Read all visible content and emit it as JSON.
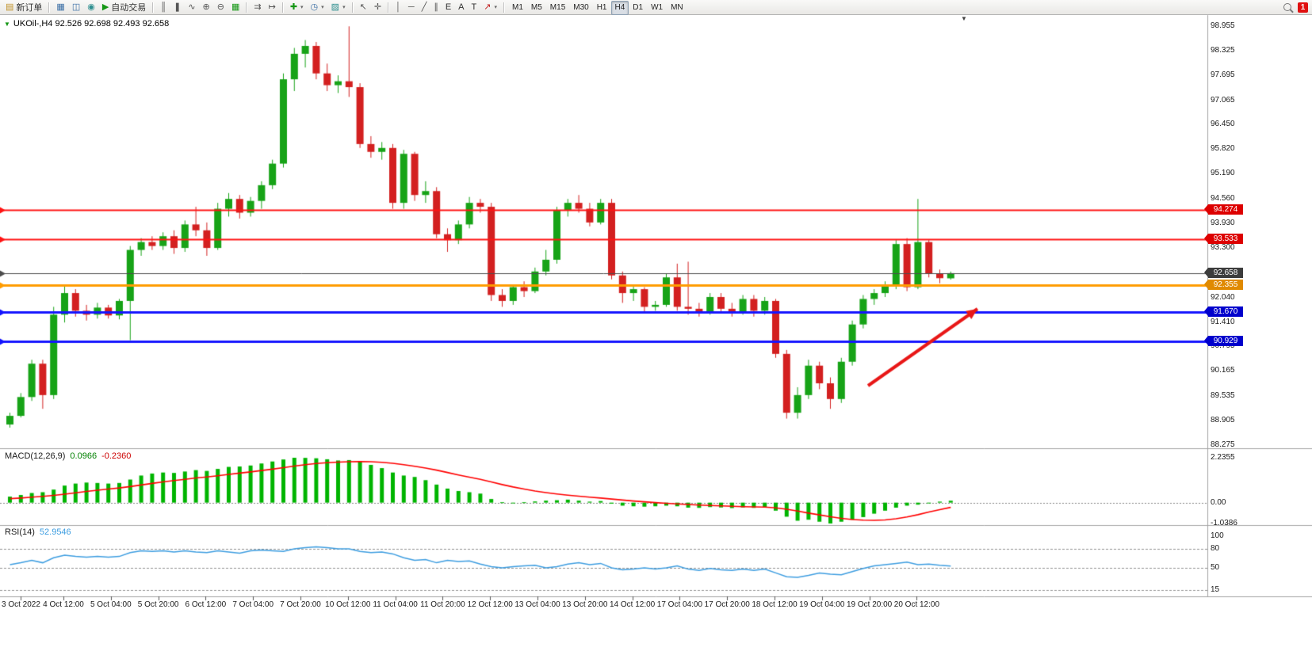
{
  "toolbar": {
    "new_order_label": "新订单",
    "auto_trading_label": "自动交易",
    "equidistant_label": "E",
    "text_tool_label": "A",
    "text_label_tool_label": "T",
    "timeframes": [
      "M1",
      "M5",
      "M15",
      "M30",
      "H1",
      "H4",
      "D1",
      "W1",
      "MN"
    ],
    "active_timeframe": "H4",
    "notification_badge": "1"
  },
  "icons": {
    "new_order": "▤",
    "chart_window": "▦",
    "profiles": "◫",
    "metaeditor": "◉",
    "auto_trading_play": "▶",
    "bar_mode": "║",
    "candle_mode": "❚",
    "line_mode": "∿",
    "zoom_in": "⊕",
    "zoom_out": "⊖",
    "tile_windows": "▦",
    "auto_scroll": "⇉",
    "chart_shift": "↦",
    "add_indicator": "✚",
    "periods": "◷",
    "templates": "▨",
    "cursor": "↖",
    "crosshair": "✛",
    "vertical_line": "│",
    "horizontal_line": "─",
    "trend_line": "╱",
    "channel": "∥",
    "arrows_tool": "↗",
    "dropdown": "▾",
    "symbol_marker": "▼",
    "shift_marker": "▼"
  },
  "chart": {
    "title": "UKOil-,H4 92.526 92.698 92.493 92.658",
    "bull_color": "#17a317",
    "bear_color": "#d32020",
    "price_axis_ticks": [
      "98.955",
      "98.325",
      "97.695",
      "97.065",
      "96.450",
      "95.820",
      "95.190",
      "94.560",
      "93.930",
      "93.300",
      "92.670",
      "92.040",
      "91.410",
      "90.795",
      "90.165",
      "89.535",
      "88.905",
      "88.275"
    ],
    "time_axis_labels": [
      "3 Oct 2022",
      "4 Oct 12:00",
      "5 Oct 04:00",
      "5 Oct 20:00",
      "6 Oct 12:00",
      "7 Oct 04:00",
      "7 Oct 20:00",
      "10 Oct 12:00",
      "11 Oct 04:00",
      "11 Oct 20:00",
      "12 Oct 12:00",
      "13 Oct 04:00",
      "13 Oct 20:00",
      "14 Oct 12:00",
      "17 Oct 04:00",
      "17 Oct 20:00",
      "18 Oct 12:00",
      "19 Oct 04:00",
      "19 Oct 20:00",
      "20 Oct 12:00"
    ],
    "hlines": [
      {
        "value": 94.274,
        "label": "94.274",
        "color": "#ff1414",
        "badge_bg": "#dd0000",
        "width": 2
      },
      {
        "value": 93.533,
        "label": "93.533",
        "color": "#ff1414",
        "badge_bg": "#dd0000",
        "width": 2
      },
      {
        "value": 92.355,
        "label": "92.355",
        "color": "#ff9c00",
        "badge_bg": "#e08a00",
        "width": 3
      },
      {
        "value": 91.67,
        "label": "91.670",
        "color": "#1414ff",
        "badge_bg": "#0000cc",
        "width": 3
      },
      {
        "value": 90.929,
        "label": "90.929",
        "color": "#1414ff",
        "badge_bg": "#0000cc",
        "width": 3
      }
    ],
    "current_price": {
      "value": 92.658,
      "label": "92.658",
      "color": "#4d4d4d",
      "badge_bg": "#3c3c3c",
      "width": 1
    },
    "annotation_arrow": {
      "from": [
        1095,
        487
      ],
      "to": [
        1233,
        390
      ],
      "color": "#e81717",
      "width": 4
    },
    "candles": [
      [
        88.8,
        89.1,
        88.72,
        89.02
      ],
      [
        89.02,
        89.6,
        88.98,
        89.5
      ],
      [
        89.5,
        90.45,
        89.4,
        90.35
      ],
      [
        90.35,
        90.45,
        89.2,
        89.55
      ],
      [
        89.55,
        91.8,
        89.45,
        91.6
      ],
      [
        91.6,
        92.35,
        91.4,
        92.15
      ],
      [
        92.15,
        92.25,
        91.55,
        91.7
      ],
      [
        91.7,
        91.85,
        91.45,
        91.6
      ],
      [
        91.6,
        91.9,
        91.5,
        91.78
      ],
      [
        91.78,
        91.85,
        91.5,
        91.58
      ],
      [
        91.58,
        92.0,
        91.48,
        91.95
      ],
      [
        91.95,
        93.35,
        90.95,
        93.25
      ],
      [
        93.25,
        93.55,
        93.1,
        93.45
      ],
      [
        93.45,
        93.6,
        93.25,
        93.35
      ],
      [
        93.35,
        93.7,
        93.25,
        93.6
      ],
      [
        93.6,
        93.75,
        93.15,
        93.3
      ],
      [
        93.3,
        94.0,
        93.2,
        93.9
      ],
      [
        93.9,
        94.35,
        93.6,
        93.75
      ],
      [
        93.75,
        93.95,
        93.1,
        93.3
      ],
      [
        93.3,
        94.45,
        93.25,
        94.3
      ],
      [
        94.3,
        94.7,
        94.1,
        94.55
      ],
      [
        94.55,
        94.65,
        94.05,
        94.2
      ],
      [
        94.2,
        94.6,
        94.1,
        94.5
      ],
      [
        94.5,
        95.0,
        94.3,
        94.9
      ],
      [
        94.9,
        95.55,
        94.8,
        95.45
      ],
      [
        95.45,
        97.75,
        95.35,
        97.6
      ],
      [
        97.6,
        98.4,
        97.3,
        98.25
      ],
      [
        98.25,
        98.6,
        97.9,
        98.45
      ],
      [
        98.45,
        98.55,
        97.6,
        97.75
      ],
      [
        97.75,
        98.0,
        97.3,
        97.45
      ],
      [
        97.45,
        97.7,
        97.25,
        97.55
      ],
      [
        97.55,
        98.95,
        97.15,
        97.4
      ],
      [
        97.4,
        97.5,
        95.85,
        95.95
      ],
      [
        95.95,
        96.15,
        95.6,
        95.75
      ],
      [
        95.75,
        96.0,
        95.55,
        95.85
      ],
      [
        95.85,
        95.95,
        94.3,
        94.45
      ],
      [
        94.45,
        95.8,
        94.3,
        95.7
      ],
      [
        95.7,
        95.75,
        94.5,
        94.65
      ],
      [
        94.65,
        95.0,
        94.45,
        94.75
      ],
      [
        94.75,
        94.85,
        93.55,
        93.65
      ],
      [
        93.65,
        93.8,
        93.2,
        93.5
      ],
      [
        93.5,
        94.0,
        93.4,
        93.9
      ],
      [
        93.9,
        94.6,
        93.8,
        94.45
      ],
      [
        94.45,
        94.55,
        94.2,
        94.35
      ],
      [
        94.35,
        94.45,
        91.95,
        92.1
      ],
      [
        92.1,
        92.25,
        91.8,
        91.95
      ],
      [
        91.95,
        92.35,
        91.85,
        92.3
      ],
      [
        92.3,
        92.45,
        92.05,
        92.2
      ],
      [
        92.2,
        92.8,
        92.15,
        92.7
      ],
      [
        92.7,
        93.25,
        92.6,
        93.0
      ],
      [
        93.0,
        94.35,
        92.9,
        94.25
      ],
      [
        94.25,
        94.55,
        94.1,
        94.45
      ],
      [
        94.45,
        94.65,
        94.2,
        94.3
      ],
      [
        94.3,
        94.45,
        93.85,
        93.95
      ],
      [
        93.95,
        94.55,
        93.9,
        94.45
      ],
      [
        94.45,
        94.55,
        92.5,
        92.6
      ],
      [
        92.6,
        92.7,
        91.9,
        92.15
      ],
      [
        92.15,
        92.35,
        91.95,
        92.25
      ],
      [
        92.25,
        92.3,
        91.65,
        91.8
      ],
      [
        91.8,
        91.95,
        91.7,
        91.85
      ],
      [
        91.85,
        92.65,
        91.8,
        92.55
      ],
      [
        92.55,
        92.9,
        91.7,
        91.8
      ],
      [
        91.8,
        92.95,
        91.6,
        91.75
      ],
      [
        91.75,
        91.9,
        91.55,
        91.65
      ],
      [
        91.65,
        92.15,
        91.6,
        92.05
      ],
      [
        92.05,
        92.15,
        91.65,
        91.75
      ],
      [
        91.75,
        91.9,
        91.55,
        91.65
      ],
      [
        91.65,
        92.1,
        91.6,
        92.0
      ],
      [
        92.0,
        92.1,
        91.55,
        91.7
      ],
      [
        91.7,
        92.05,
        91.6,
        91.95
      ],
      [
        91.95,
        92.0,
        90.5,
        90.6
      ],
      [
        90.6,
        90.7,
        88.95,
        89.1
      ],
      [
        89.1,
        89.75,
        88.95,
        89.55
      ],
      [
        89.55,
        90.45,
        89.45,
        90.3
      ],
      [
        90.3,
        90.4,
        89.7,
        89.85
      ],
      [
        89.85,
        90.0,
        89.2,
        89.45
      ],
      [
        89.45,
        90.5,
        89.35,
        90.4
      ],
      [
        90.4,
        91.45,
        90.3,
        91.35
      ],
      [
        91.35,
        92.1,
        91.25,
        92.0
      ],
      [
        92.0,
        92.25,
        91.85,
        92.15
      ],
      [
        92.15,
        92.45,
        92.05,
        92.35
      ],
      [
        92.35,
        93.5,
        92.25,
        93.4
      ],
      [
        93.4,
        93.55,
        92.2,
        92.3
      ],
      [
        92.3,
        94.55,
        92.25,
        93.45
      ],
      [
        93.45,
        93.5,
        92.55,
        92.65
      ],
      [
        92.65,
        92.75,
        92.4,
        92.53
      ],
      [
        92.526,
        92.698,
        92.493,
        92.658
      ]
    ]
  },
  "macd": {
    "name": "MACD(12,26,9)",
    "values": [
      "0.0966",
      "-0.2360"
    ],
    "axis_ticks": [
      "2.2355",
      "0.00",
      "-1.0386"
    ],
    "hist_color": "#00b400",
    "signal_color": "#ff0000",
    "range": {
      "min": -1.0386,
      "max": 2.2355
    },
    "histogram": [
      0.3,
      0.38,
      0.48,
      0.52,
      0.65,
      0.85,
      0.95,
      1.0,
      0.98,
      0.95,
      0.98,
      1.15,
      1.35,
      1.45,
      1.5,
      1.48,
      1.55,
      1.62,
      1.58,
      1.68,
      1.78,
      1.8,
      1.85,
      1.95,
      2.05,
      2.15,
      2.2355,
      2.23,
      2.21,
      2.16,
      2.1,
      2.12,
      2.05,
      1.88,
      1.72,
      1.5,
      1.35,
      1.28,
      1.12,
      0.9,
      0.7,
      0.58,
      0.52,
      0.45,
      0.18,
      0.02,
      0.0,
      0.02,
      0.06,
      0.1,
      0.12,
      0.15,
      0.1,
      0.05,
      0.08,
      -0.05,
      -0.15,
      -0.18,
      -0.2,
      -0.18,
      -0.15,
      -0.18,
      -0.25,
      -0.26,
      -0.22,
      -0.24,
      -0.27,
      -0.24,
      -0.26,
      -0.24,
      -0.4,
      -0.7,
      -0.9,
      -0.85,
      -0.95,
      -1.0386,
      -0.95,
      -0.85,
      -0.72,
      -0.55,
      -0.4,
      -0.25,
      -0.15,
      -0.1,
      -0.02,
      0.05,
      0.0966
    ],
    "signal": [
      0.2,
      0.23,
      0.27,
      0.31,
      0.36,
      0.42,
      0.49,
      0.56,
      0.62,
      0.68,
      0.73,
      0.8,
      0.88,
      0.96,
      1.03,
      1.1,
      1.16,
      1.23,
      1.28,
      1.34,
      1.41,
      1.47,
      1.53,
      1.6,
      1.67,
      1.74,
      1.82,
      1.89,
      1.95,
      1.99,
      2.02,
      2.04,
      2.05,
      2.04,
      2.01,
      1.96,
      1.89,
      1.81,
      1.72,
      1.62,
      1.5,
      1.38,
      1.27,
      1.16,
      1.03,
      0.9,
      0.78,
      0.68,
      0.58,
      0.5,
      0.43,
      0.37,
      0.32,
      0.27,
      0.23,
      0.18,
      0.13,
      0.08,
      0.04,
      0.0,
      -0.03,
      -0.06,
      -0.09,
      -0.12,
      -0.14,
      -0.16,
      -0.18,
      -0.2,
      -0.21,
      -0.22,
      -0.26,
      -0.33,
      -0.42,
      -0.52,
      -0.61,
      -0.7,
      -0.78,
      -0.84,
      -0.87,
      -0.88,
      -0.86,
      -0.8,
      -0.71,
      -0.6,
      -0.47,
      -0.35,
      -0.236
    ]
  },
  "rsi": {
    "name": "RSI(14)",
    "value": "52.9546",
    "axis_ticks": [
      "100",
      "80",
      "50",
      "15"
    ],
    "levels": [
      80,
      50,
      15
    ],
    "line_color": "#3d9de0",
    "values": [
      55,
      58,
      62,
      58,
      66,
      70,
      68,
      67,
      68,
      67,
      68,
      74,
      77,
      76,
      77,
      75,
      77,
      75,
      74,
      77,
      75,
      73,
      77,
      78,
      77,
      76,
      80,
      82,
      83,
      82,
      80,
      80,
      76,
      74,
      75,
      72,
      66,
      62,
      63,
      58,
      62,
      60,
      61,
      56,
      52,
      50,
      52,
      53,
      54,
      50,
      52,
      56,
      58,
      55,
      57,
      50,
      47,
      48,
      50,
      48,
      50,
      53,
      48,
      46,
      49,
      47,
      46,
      48,
      46,
      48,
      42,
      36,
      35,
      38,
      42,
      40,
      39,
      44,
      49,
      53,
      55,
      57,
      59,
      55,
      56,
      54,
      52.95
    ]
  }
}
